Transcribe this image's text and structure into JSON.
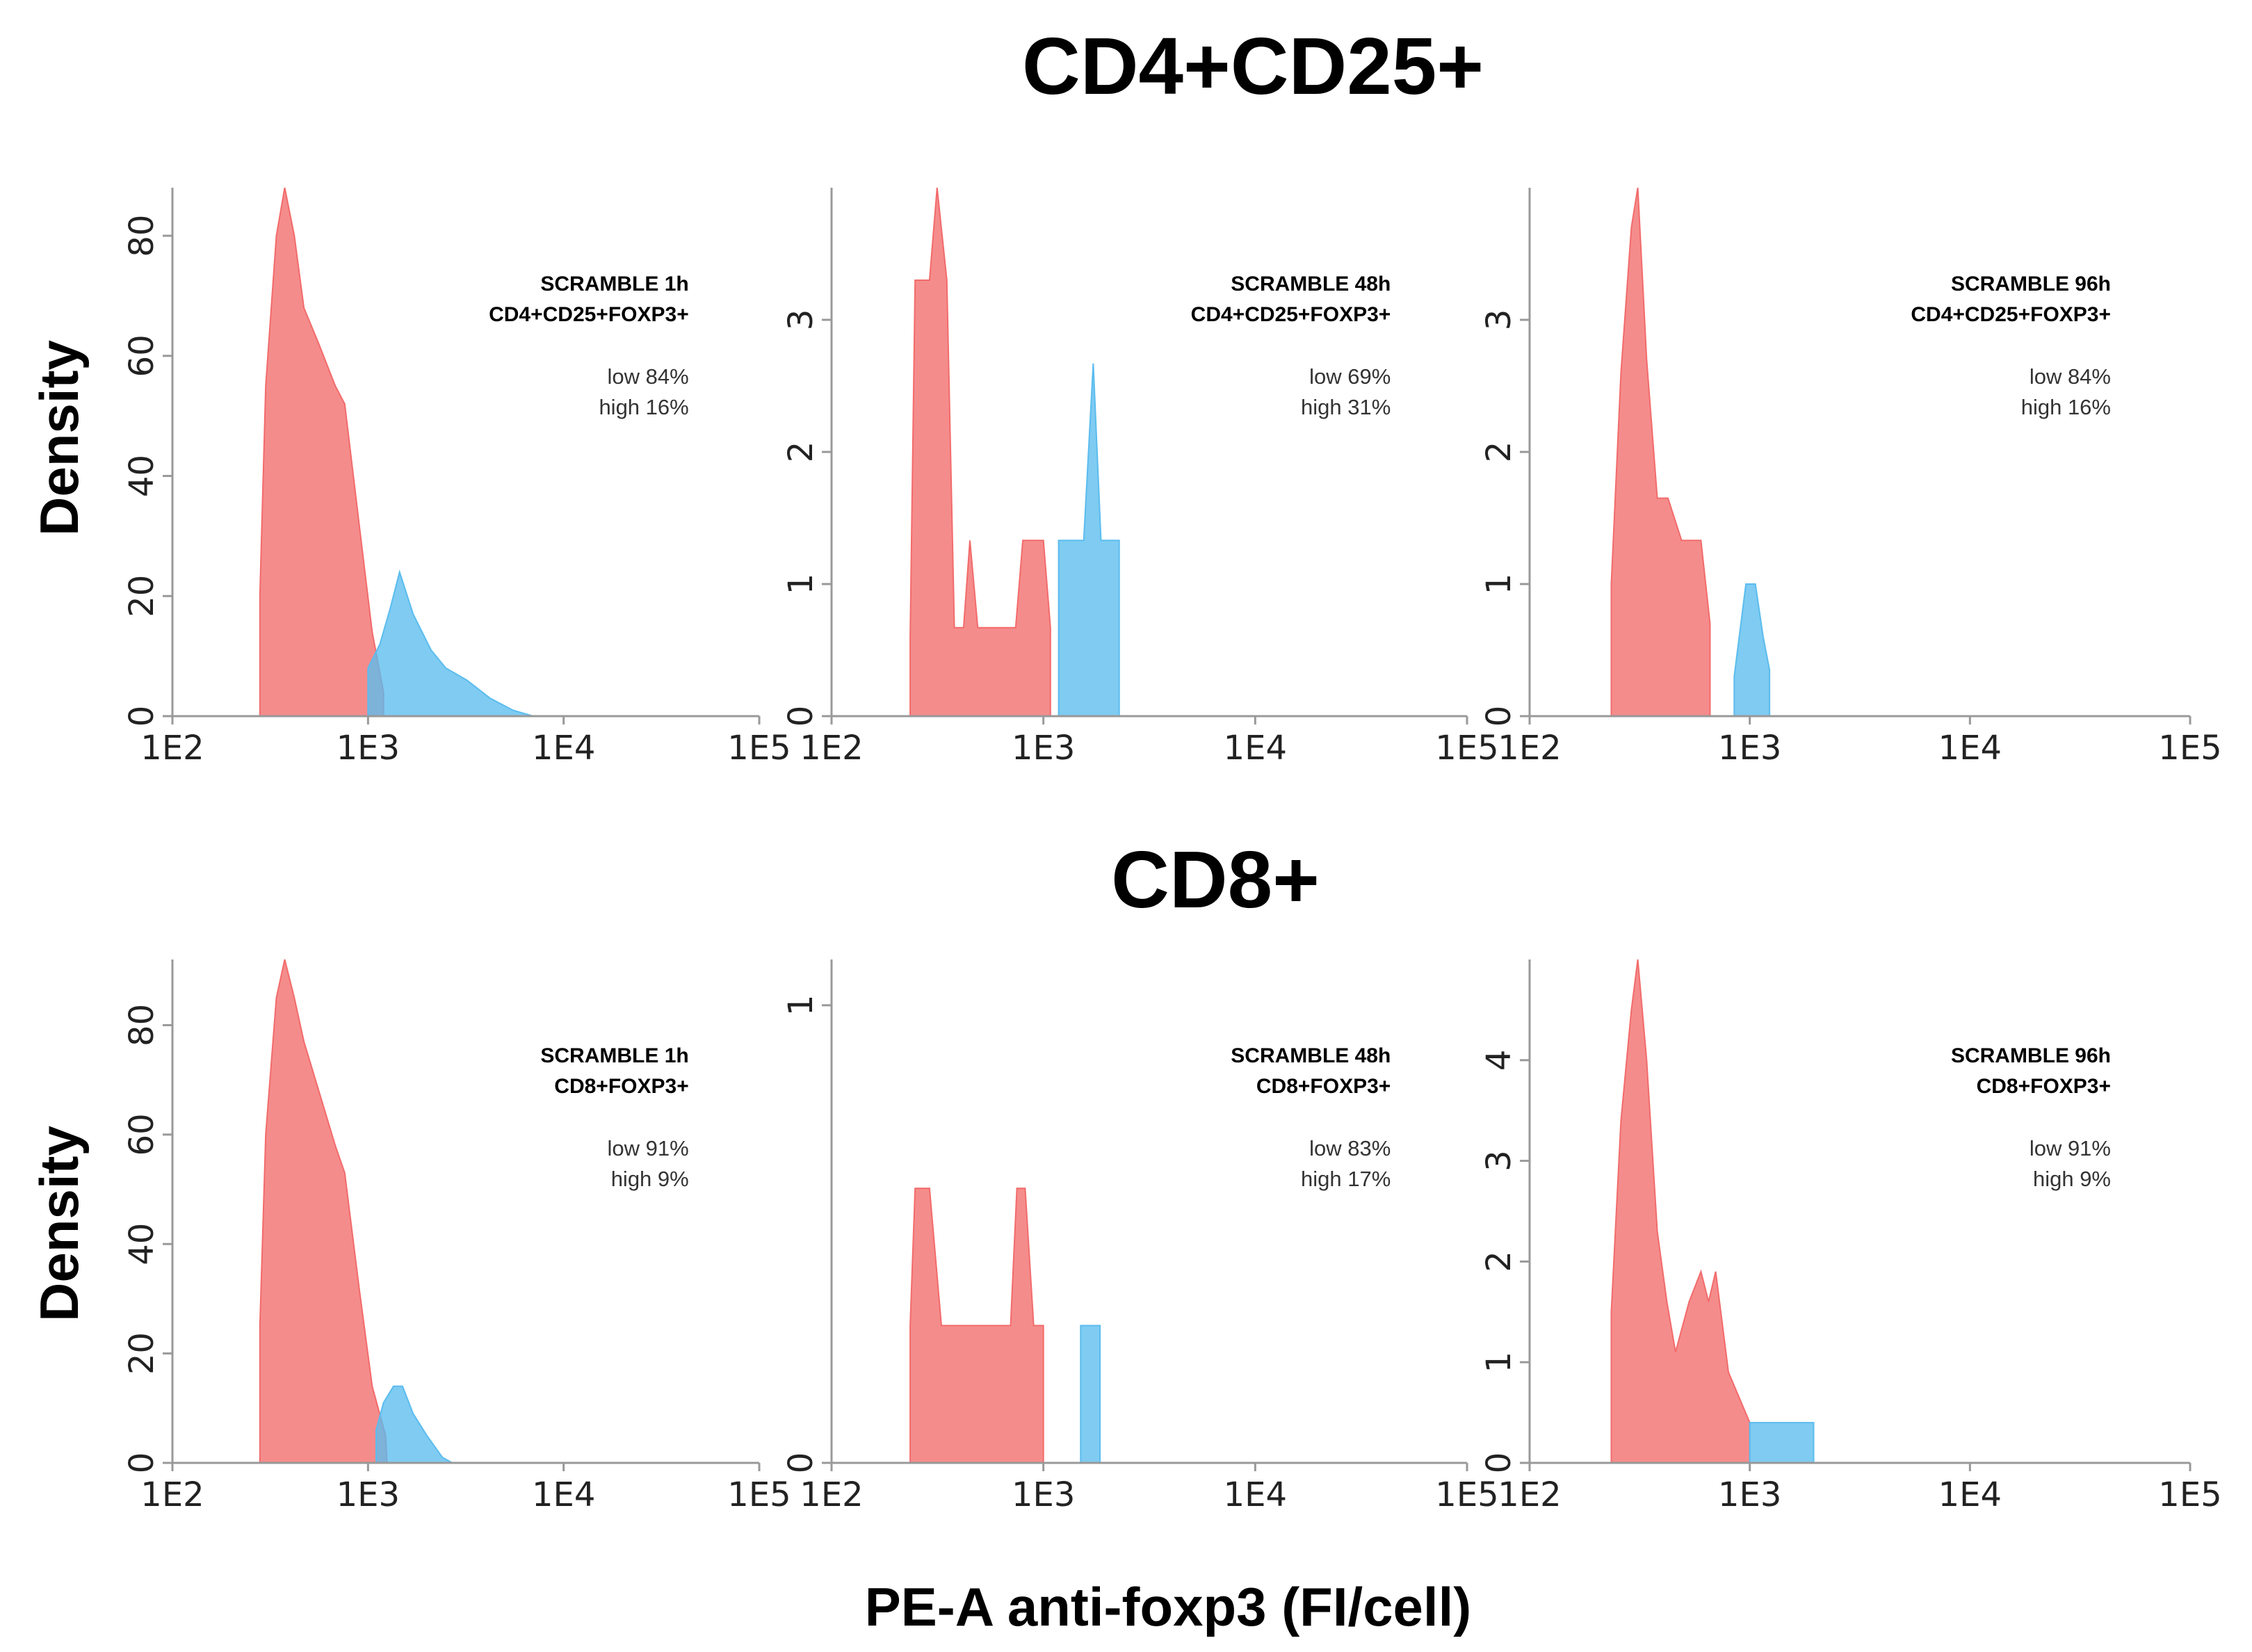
{
  "titles": {
    "top": "CD4+CD25+",
    "bottom": "CD8+"
  },
  "axis": {
    "x_label": "PE-A anti-foxp3 (FI/cell)",
    "y_label": "Density"
  },
  "colors": {
    "low": "#f26b6b",
    "high": "#5bbcee",
    "axis": "#999999"
  },
  "chart_data": [
    {
      "type": "area",
      "x_scale": "log",
      "xlim": [
        100,
        100000
      ],
      "x_ticks": [
        100,
        1000,
        10000,
        100000
      ],
      "x_tick_labels": [
        "1E2",
        "1E3",
        "1E4",
        "1E5"
      ],
      "ylim": [
        0,
        88
      ],
      "y_ticks": [
        0,
        20,
        40,
        60,
        80
      ],
      "ylabel": "Density",
      "annotation": {
        "title": "SCRAMBLE 1h",
        "subtitle": "CD4+CD25+FOXP3+",
        "low": "low 84%",
        "high": "high 16%"
      },
      "series": [
        {
          "name": "low",
          "color": "#f26b6b",
          "points": [
            [
              280,
              0
            ],
            [
              280,
              20
            ],
            [
              300,
              55
            ],
            [
              340,
              80
            ],
            [
              375,
              88
            ],
            [
              420,
              80
            ],
            [
              470,
              68
            ],
            [
              560,
              62
            ],
            [
              680,
              55
            ],
            [
              760,
              52
            ],
            [
              900,
              32
            ],
            [
              1050,
              14
            ],
            [
              1200,
              4
            ],
            [
              1200,
              0
            ]
          ]
        },
        {
          "name": "high",
          "color": "#5bbcee",
          "points": [
            [
              1000,
              0
            ],
            [
              1000,
              8
            ],
            [
              1150,
              12
            ],
            [
              1300,
              18
            ],
            [
              1450,
              24
            ],
            [
              1700,
              17
            ],
            [
              2100,
              11
            ],
            [
              2500,
              8
            ],
            [
              3200,
              6
            ],
            [
              4200,
              3
            ],
            [
              5500,
              1
            ],
            [
              7000,
              0
            ]
          ]
        }
      ]
    },
    {
      "type": "area",
      "x_scale": "log",
      "xlim": [
        100,
        100000
      ],
      "x_ticks": [
        100,
        1000,
        10000,
        100000
      ],
      "x_tick_labels": [
        "1E2",
        "1E3",
        "1E4",
        "1E5"
      ],
      "ylim": [
        0,
        4
      ],
      "y_ticks": [
        0,
        1,
        2,
        3
      ],
      "annotation": {
        "title": "SCRAMBLE 48h",
        "subtitle": "CD4+CD25+FOXP3+",
        "low": "low 69%",
        "high": "high 31%"
      },
      "series": [
        {
          "name": "low",
          "color": "#f26b6b",
          "points": [
            [
              235,
              0
            ],
            [
              235,
              0.6
            ],
            [
              248,
              3.3
            ],
            [
              290,
              3.3
            ],
            [
              315,
              4.0
            ],
            [
              350,
              3.3
            ],
            [
              380,
              0.67
            ],
            [
              420,
              0.67
            ],
            [
              450,
              1.33
            ],
            [
              490,
              0.67
            ],
            [
              600,
              0.67
            ],
            [
              740,
              0.67
            ],
            [
              800,
              1.33
            ],
            [
              1000,
              1.33
            ],
            [
              1080,
              0.67
            ],
            [
              1080,
              0
            ]
          ]
        },
        {
          "name": "high",
          "color": "#5bbcee",
          "points": [
            [
              1180,
              0
            ],
            [
              1180,
              1.33
            ],
            [
              1550,
              1.33
            ],
            [
              1720,
              2.67
            ],
            [
              1870,
              1.33
            ],
            [
              2280,
              1.33
            ],
            [
              2280,
              0
            ]
          ]
        }
      ]
    },
    {
      "type": "area",
      "x_scale": "log",
      "xlim": [
        100,
        100000
      ],
      "x_ticks": [
        100,
        1000,
        10000,
        100000
      ],
      "x_tick_labels": [
        "1E2",
        "1E3",
        "1E4",
        "1E5"
      ],
      "ylim": [
        0,
        4
      ],
      "y_ticks": [
        0,
        1,
        2,
        3
      ],
      "annotation": {
        "title": "SCRAMBLE 96h",
        "subtitle": "CD4+CD25+FOXP3+",
        "low": "low 84%",
        "high": "high 16%"
      },
      "series": [
        {
          "name": "low",
          "color": "#f26b6b",
          "points": [
            [
              235,
              0
            ],
            [
              235,
              1.0
            ],
            [
              260,
              2.6
            ],
            [
              290,
              3.7
            ],
            [
              310,
              4.0
            ],
            [
              340,
              2.7
            ],
            [
              380,
              1.65
            ],
            [
              425,
              1.65
            ],
            [
              490,
              1.33
            ],
            [
              600,
              1.33
            ],
            [
              660,
              0.7
            ],
            [
              660,
              0
            ]
          ]
        },
        {
          "name": "high",
          "color": "#5bbcee",
          "points": [
            [
              850,
              0
            ],
            [
              850,
              0.3
            ],
            [
              960,
              1.0
            ],
            [
              1060,
              1.0
            ],
            [
              1150,
              0.6
            ],
            [
              1230,
              0.35
            ],
            [
              1230,
              0
            ]
          ]
        }
      ]
    },
    {
      "type": "area",
      "x_scale": "log",
      "xlim": [
        100,
        100000
      ],
      "x_ticks": [
        100,
        1000,
        10000,
        100000
      ],
      "x_tick_labels": [
        "1E2",
        "1E3",
        "1E4",
        "1E5"
      ],
      "ylim": [
        0,
        92
      ],
      "y_ticks": [
        0,
        20,
        40,
        60,
        80
      ],
      "ylabel": "Density",
      "annotation": {
        "title": "SCRAMBLE 1h",
        "subtitle": "CD8+FOXP3+",
        "low": "low 91%",
        "high": "high 9%"
      },
      "series": [
        {
          "name": "low",
          "color": "#f26b6b",
          "points": [
            [
              280,
              0
            ],
            [
              280,
              25
            ],
            [
              300,
              60
            ],
            [
              340,
              85
            ],
            [
              375,
              92
            ],
            [
              420,
              85
            ],
            [
              470,
              77
            ],
            [
              560,
              68
            ],
            [
              680,
              58
            ],
            [
              760,
              53
            ],
            [
              900,
              32
            ],
            [
              1050,
              14
            ],
            [
              1230,
              5
            ],
            [
              1250,
              0
            ]
          ]
        },
        {
          "name": "high",
          "color": "#5bbcee",
          "points": [
            [
              1100,
              0
            ],
            [
              1100,
              6
            ],
            [
              1200,
              11
            ],
            [
              1350,
              14
            ],
            [
              1500,
              14
            ],
            [
              1700,
              9
            ],
            [
              2000,
              5
            ],
            [
              2400,
              1
            ],
            [
              2700,
              0
            ]
          ]
        }
      ]
    },
    {
      "type": "area",
      "x_scale": "log",
      "xlim": [
        100,
        100000
      ],
      "x_ticks": [
        100,
        1000,
        10000,
        100000
      ],
      "x_tick_labels": [
        "1E2",
        "1E3",
        "1E4",
        "1E5"
      ],
      "ylim": [
        0,
        1.1
      ],
      "y_ticks": [
        0,
        1
      ],
      "annotation": {
        "title": "SCRAMBLE 48h",
        "subtitle": "CD8+FOXP3+",
        "low": "low 83%",
        "high": "high 17%"
      },
      "series": [
        {
          "name": "low",
          "color": "#f26b6b",
          "points": [
            [
              235,
              0
            ],
            [
              235,
              0.3
            ],
            [
              248,
              0.6
            ],
            [
              290,
              0.6
            ],
            [
              330,
              0.3
            ],
            [
              600,
              0.3
            ],
            [
              700,
              0.3
            ],
            [
              750,
              0.6
            ],
            [
              820,
              0.6
            ],
            [
              900,
              0.3
            ],
            [
              1000,
              0.3
            ],
            [
              1000,
              0
            ]
          ]
        },
        {
          "name": "high",
          "color": "#5bbcee",
          "points": [
            [
              1500,
              0
            ],
            [
              1500,
              0.3
            ],
            [
              1850,
              0.3
            ],
            [
              1850,
              0
            ]
          ]
        }
      ]
    },
    {
      "type": "area",
      "x_scale": "log",
      "xlim": [
        100,
        100000
      ],
      "x_ticks": [
        100,
        1000,
        10000,
        100000
      ],
      "x_tick_labels": [
        "1E2",
        "1E3",
        "1E4",
        "1E5"
      ],
      "ylim": [
        0,
        5
      ],
      "y_ticks": [
        0,
        1,
        2,
        3,
        4
      ],
      "annotation": {
        "title": "SCRAMBLE 96h",
        "subtitle": "CD8+FOXP3+",
        "low": "low 91%",
        "high": "high 9%"
      },
      "series": [
        {
          "name": "low",
          "color": "#f26b6b",
          "points": [
            [
              235,
              0
            ],
            [
              235,
              1.5
            ],
            [
              260,
              3.4
            ],
            [
              290,
              4.5
            ],
            [
              310,
              5.0
            ],
            [
              340,
              4.0
            ],
            [
              380,
              2.3
            ],
            [
              420,
              1.6
            ],
            [
              460,
              1.1
            ],
            [
              530,
              1.6
            ],
            [
              600,
              1.9
            ],
            [
              650,
              1.6
            ],
            [
              700,
              1.9
            ],
            [
              800,
              0.9
            ],
            [
              1000,
              0.4
            ],
            [
              1000,
              0
            ]
          ]
        },
        {
          "name": "high",
          "color": "#5bbcee",
          "points": [
            [
              1000,
              0
            ],
            [
              1000,
              0.4
            ],
            [
              1950,
              0.4
            ],
            [
              1950,
              0
            ]
          ]
        }
      ]
    }
  ]
}
